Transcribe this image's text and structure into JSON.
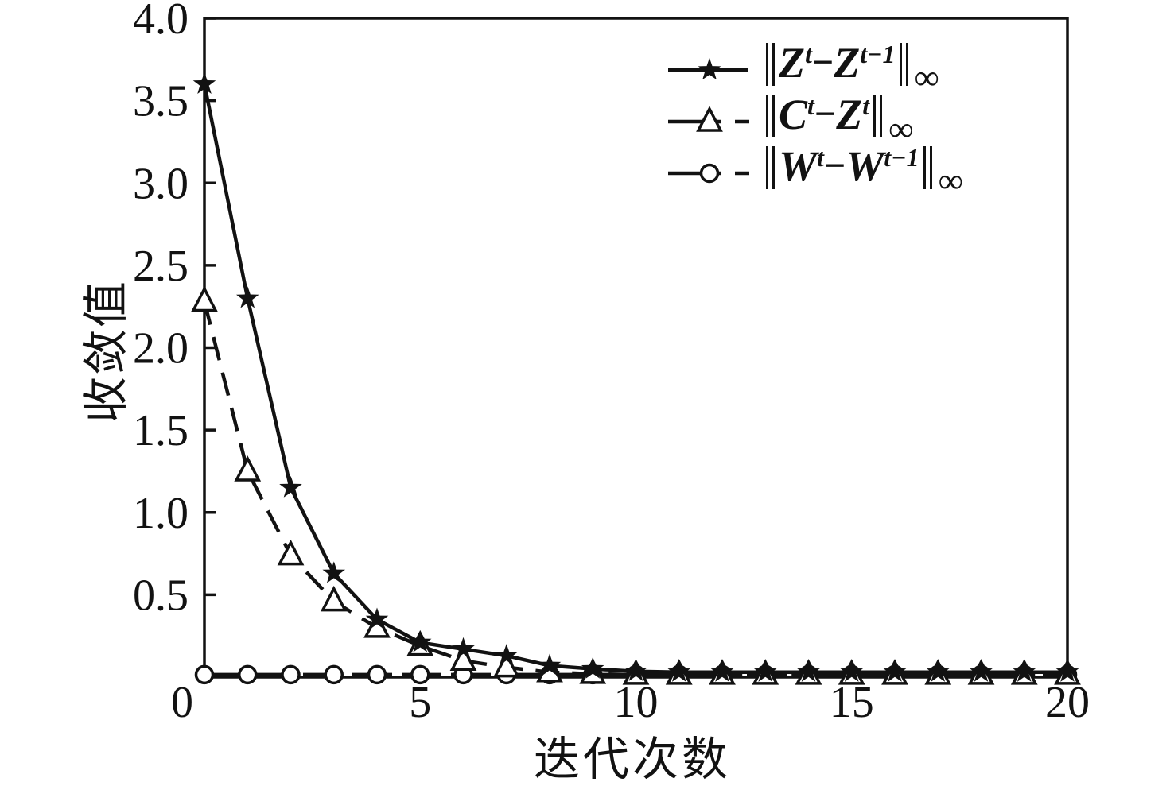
{
  "figure": {
    "ink": "#121212",
    "background": "#ffffff"
  },
  "axes": {
    "x": {
      "label": "迭代次数",
      "range": [
        0,
        20
      ],
      "ticks": [
        {
          "value": 0,
          "text": "0"
        },
        {
          "value": 5,
          "text": "5"
        },
        {
          "value": 10,
          "text": "10"
        },
        {
          "value": 15,
          "text": "15"
        },
        {
          "value": 20,
          "text": "20"
        }
      ]
    },
    "y": {
      "label": "收敛值",
      "range": [
        0,
        4.0
      ],
      "ticks": [
        {
          "value": 4.0,
          "text": "4.0"
        },
        {
          "value": 3.5,
          "text": "3.5"
        },
        {
          "value": 3.0,
          "text": "3.0"
        },
        {
          "value": 2.5,
          "text": "2.5"
        },
        {
          "value": 2.0,
          "text": "2.0"
        },
        {
          "value": 1.5,
          "text": "1.5"
        },
        {
          "value": 1.0,
          "text": "1.0"
        },
        {
          "value": 0.5,
          "text": "0.5"
        }
      ]
    }
  },
  "legend": {
    "items": [
      {
        "id": "z-residual",
        "label_text": "‖Zᵗ−Zᵗ⁻¹‖∞",
        "marker": "star",
        "line_style": "solid",
        "parts": [
          {
            "k": "norm",
            "t": "‖"
          },
          {
            "k": "var",
            "t": "Z"
          },
          {
            "k": "sup",
            "t": "t"
          },
          {
            "k": "op",
            "t": "−"
          },
          {
            "k": "var",
            "t": "Z"
          },
          {
            "k": "sup",
            "t": "t−1"
          },
          {
            "k": "norm",
            "t": "‖"
          },
          {
            "k": "inf",
            "t": "∞"
          }
        ]
      },
      {
        "id": "cz-gap",
        "label_text": "‖Cᵗ−Zᵗ‖∞",
        "marker": "triangle-open",
        "line_style": "dashed",
        "parts": [
          {
            "k": "norm",
            "t": "‖"
          },
          {
            "k": "var",
            "t": "C"
          },
          {
            "k": "sup",
            "t": "t"
          },
          {
            "k": "op",
            "t": "−"
          },
          {
            "k": "var",
            "t": "Z"
          },
          {
            "k": "sup",
            "t": "t"
          },
          {
            "k": "norm",
            "t": "‖"
          },
          {
            "k": "inf",
            "t": "∞"
          }
        ]
      },
      {
        "id": "w-residual",
        "label_text": "‖Wᵗ−Wᵗ⁻¹‖∞",
        "marker": "circle-open",
        "line_style": "dashed",
        "parts": [
          {
            "k": "norm",
            "t": "‖"
          },
          {
            "k": "var",
            "t": "W"
          },
          {
            "k": "sup",
            "t": "t"
          },
          {
            "k": "op",
            "t": "−"
          },
          {
            "k": "var",
            "t": "W"
          },
          {
            "k": "sup",
            "t": "t−1"
          },
          {
            "k": "norm",
            "t": "‖"
          },
          {
            "k": "inf",
            "t": "∞"
          }
        ]
      }
    ]
  },
  "chart_data": {
    "type": "line",
    "title": "",
    "xlabel": "迭代次数",
    "ylabel": "收敛值",
    "xlim": [
      0,
      20
    ],
    "ylim": [
      0,
      4.0
    ],
    "grid": false,
    "legend_position": "upper right inside, no frame",
    "x": [
      0,
      1,
      2,
      3,
      4,
      5,
      6,
      7,
      8,
      9,
      10,
      11,
      12,
      13,
      14,
      15,
      16,
      17,
      18,
      19,
      20
    ],
    "series": [
      {
        "name": "‖Zᵗ−Zᵗ⁻¹‖∞",
        "marker": "star",
        "line_style": "solid",
        "values": [
          3.6,
          2.3,
          1.15,
          0.63,
          0.35,
          0.21,
          0.17,
          0.13,
          0.07,
          0.05,
          0.035,
          0.03,
          0.03,
          0.03,
          0.03,
          0.03,
          0.03,
          0.03,
          0.03,
          0.03,
          0.03
        ]
      },
      {
        "name": "‖Cᵗ−Zᵗ‖∞",
        "marker": "triangle-open",
        "line_style": "dashed",
        "values": [
          2.28,
          1.25,
          0.74,
          0.46,
          0.3,
          0.19,
          0.1,
          0.06,
          0.03,
          0.02,
          0.015,
          0.015,
          0.015,
          0.015,
          0.015,
          0.015,
          0.015,
          0.015,
          0.015,
          0.015,
          0.015
        ]
      },
      {
        "name": "‖Wᵗ−Wᵗ⁻¹‖∞",
        "marker": "circle-open",
        "line_style": "dashed",
        "values": [
          0.015,
          0.015,
          0.015,
          0.015,
          0.015,
          0.015,
          0.015,
          0.015,
          0.015,
          0.015,
          0.015,
          0.015,
          0.015,
          0.015,
          0.015,
          0.015,
          0.015,
          0.015,
          0.015,
          0.015,
          0.015
        ]
      }
    ]
  }
}
